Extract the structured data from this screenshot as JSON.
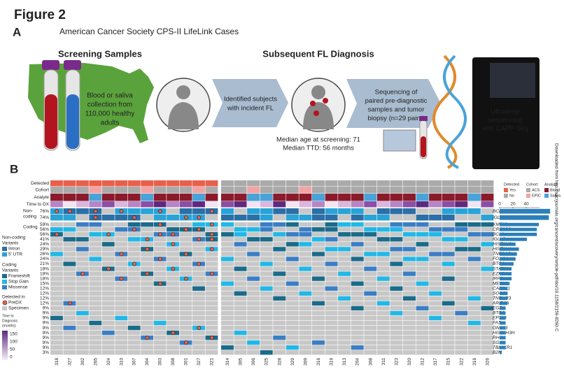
{
  "figure_label": "Figure 2",
  "panel_a": {
    "label": "A",
    "title": "American Cancer Society CPS-II LifeLink Cases",
    "screening_title": "Screening Samples",
    "diagnosis_title": "Subsequent FL Diagnosis",
    "collection_text": [
      "Blood or saliva",
      "collection from",
      "110,000 healthy",
      "adults"
    ],
    "identified_text": [
      "Identified subjects",
      "with incident FL"
    ],
    "median_age": "Median age at screening: 71",
    "median_ttd": "Median TTD: 56 months",
    "sequencing_text": [
      "Sequencing of",
      "paired pre-diagnostic",
      "samples and tumor",
      "biopsy (n=29 pairs)"
    ],
    "ultradeep_text": [
      "Ultradeep",
      "sequencing",
      "with CAPP-Seq"
    ]
  },
  "panel_b": {
    "label": "B",
    "track_labels": [
      "Detected",
      "Cohort",
      "Analyte",
      "Time to DX"
    ],
    "noncoding_label": [
      "Non-",
      "coding"
    ],
    "coding_label": "Coding",
    "noncoding": {
      "genes": [
        "BCL2",
        "IGLL5"
      ],
      "values": [
        76,
        74
      ],
      "value_labels": [
        "76%",
        "74%"
      ]
    },
    "coding": {
      "genes": [
        "KMT2D",
        "CREBBP",
        "BCL2",
        "IGLL5",
        "HIST1H2",
        "HIST1H1",
        "TNFRSF14",
        "FOXO1",
        "BTG1",
        "STAT6",
        "EZH2",
        "IRF8",
        "MEF2B",
        "CARD11",
        "SOCS1",
        "TNFAIP3",
        "ARID1A",
        "EGR1",
        "BTG2",
        "EP300",
        "FAS",
        "GNA13",
        "HIST1H3H",
        "RHOA",
        "SGK1",
        "TBL1XR1",
        "B2M"
      ],
      "values": [
        59,
        56,
        56,
        41,
        24,
        29,
        26,
        24,
        21,
        18,
        18,
        18,
        15,
        12,
        12,
        12,
        12,
        9,
        9,
        9,
        9,
        9,
        9,
        9,
        9,
        9,
        3
      ],
      "value_labels": [
        "59%",
        "56%",
        "56%",
        "41%",
        "24%",
        "29%",
        "26%",
        "24%",
        "21%",
        "18%",
        "18%",
        "18%",
        "15%",
        "12%",
        "12%",
        "12%",
        "12%",
        "9%",
        "9%",
        "9%",
        "9%",
        "9%",
        "9%",
        "9%",
        "9%",
        "9%",
        "3%"
      ]
    },
    "samples_detected": [
      "318",
      "327",
      "302",
      "265",
      "324",
      "310",
      "307",
      "304",
      "303",
      "308",
      "301",
      "327",
      "321"
    ],
    "samples_undetected": [
      "314",
      "305",
      "306",
      "325",
      "328",
      "329",
      "309",
      "316",
      "319",
      "313",
      "204",
      "308",
      "311",
      "323",
      "320",
      "312",
      "317",
      "315",
      "322",
      "316",
      "326"
    ],
    "bar_axis": {
      "xlim": [
        0,
        60
      ],
      "xticks": [
        0,
        20,
        40
      ]
    },
    "variant_legend": {
      "noncoding_title": [
        "Non-coding",
        "Variants"
      ],
      "noncoding_items": [
        {
          "name": "Intron",
          "color": "#2b6fa6"
        },
        {
          "name": "5' UTR",
          "color": "#2aa3d6"
        }
      ],
      "coding_title": [
        "Coding",
        "Variants"
      ],
      "coding_items": [
        {
          "name": "Frameshift",
          "color": "#1b6b8a"
        },
        {
          "name": "Stop Gain",
          "color": "#22b8e6"
        },
        {
          "name": "Missense",
          "color": "#3b7ec4"
        }
      ],
      "detected_title": "Detected in",
      "detected_items": [
        {
          "name": "PreDX",
          "color": "#e8604c"
        },
        {
          "name": "Specimen",
          "color": "#c8c8c8"
        }
      ],
      "time_title": [
        "Time to",
        "Diagnosis",
        "(months)"
      ],
      "time_ticks": [
        150,
        100,
        50,
        0
      ]
    },
    "track_legend": {
      "detected": {
        "title": "Detected",
        "items": [
          {
            "name": "Yes",
            "color": "#e8604c"
          },
          {
            "name": "No",
            "color": "#aaaaaa"
          }
        ]
      },
      "cohort": {
        "title": "Cohort",
        "items": [
          {
            "name": "ACS",
            "color": "#aaaaaa"
          },
          {
            "name": "EPIC",
            "color": "#f4a3a3"
          }
        ]
      },
      "analyte": {
        "title": "Analyte",
        "items": [
          {
            "name": "Blood",
            "color": "#8b1a2b"
          },
          {
            "name": "Saliva",
            "color": "#4aa3d8"
          }
        ]
      }
    }
  },
  "side_note": "Downloaded from http://aacrjournals.org/cancerdiscovery/article-pdf/doi/10.1158/2159-8290.C"
}
